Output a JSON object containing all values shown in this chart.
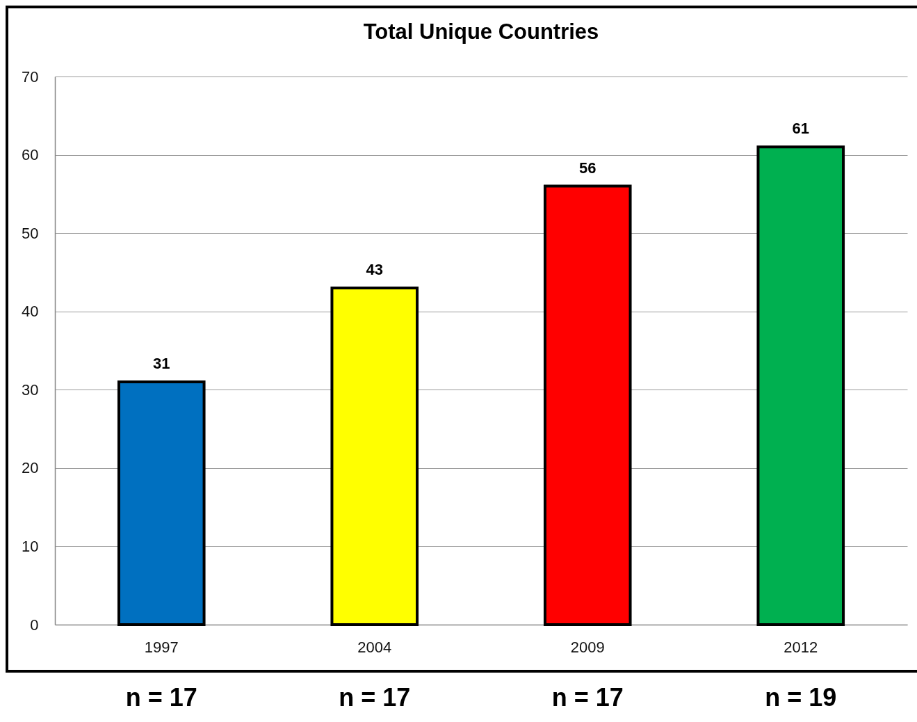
{
  "chart_data": {
    "type": "bar",
    "title": "Total Unique Countries",
    "categories": [
      "1997",
      "2004",
      "2009",
      "2012"
    ],
    "values": [
      31,
      43,
      56,
      61
    ],
    "colors": [
      "#0070c0",
      "#ffff00",
      "#ff0000",
      "#00b050"
    ],
    "data_labels": true,
    "ylim": [
      0,
      70
    ],
    "yticks": [
      0,
      10,
      20,
      30,
      40,
      50,
      60,
      70
    ],
    "grid": "y",
    "annotations": [
      "n = 17",
      "n = 17",
      "n = 17",
      "n = 19"
    ]
  }
}
